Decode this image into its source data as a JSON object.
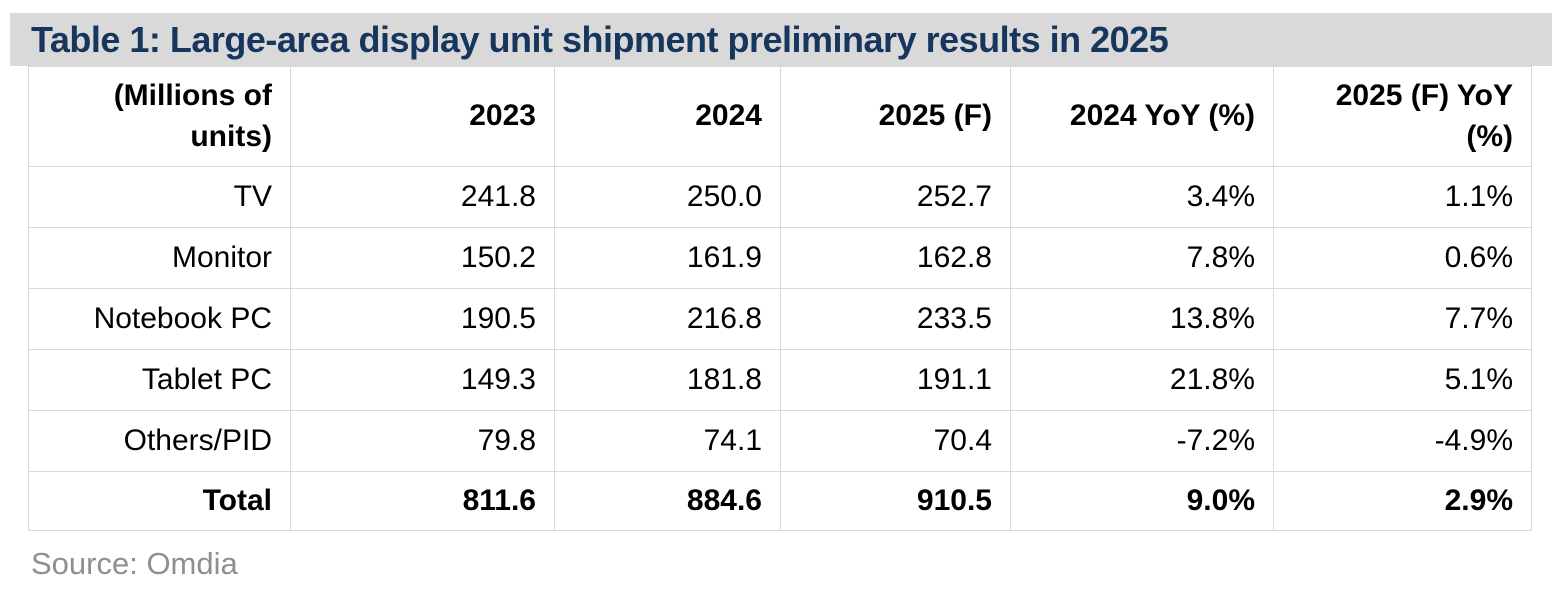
{
  "chart_data": {
    "type": "table",
    "title": "Table 1: Large-area display unit shipment preliminary results in 2025",
    "units_note": "(Millions of units)",
    "columns": [
      "(Millions of units)",
      "2023",
      "2024",
      "2025 (F)",
      "2024 YoY (%)",
      "2025 (F) YoY (%)"
    ],
    "rows": [
      {
        "label": "TV",
        "values": [
          "241.8",
          "250.0",
          "252.7",
          "3.4%",
          "1.1%"
        ]
      },
      {
        "label": "Monitor",
        "values": [
          "150.2",
          "161.9",
          "162.8",
          "7.8%",
          "0.6%"
        ]
      },
      {
        "label": "Notebook PC",
        "values": [
          "190.5",
          "216.8",
          "233.5",
          "13.8%",
          "7.7%"
        ]
      },
      {
        "label": "Tablet PC",
        "values": [
          "149.3",
          "181.8",
          "191.1",
          "21.8%",
          "5.1%"
        ]
      },
      {
        "label": "Others/PID",
        "values": [
          "79.8",
          "74.1",
          "70.4",
          "-7.2%",
          "-4.9%"
        ]
      },
      {
        "label": "Total",
        "values": [
          "811.6",
          "884.6",
          "910.5",
          "9.0%",
          "2.9%"
        ],
        "emphasis": "bold"
      }
    ],
    "source": "Omdia",
    "layout": {
      "value_alignment": "right",
      "grid": "full-borders"
    }
  },
  "footer": {
    "source": "Source: Omdia"
  },
  "colors": {
    "title_bar_bg": "#d9d9d9",
    "title_text": "#17365d",
    "table_border": "#d9d9d9",
    "body_text": "#000000",
    "source_text": "#8f8f8f"
  }
}
